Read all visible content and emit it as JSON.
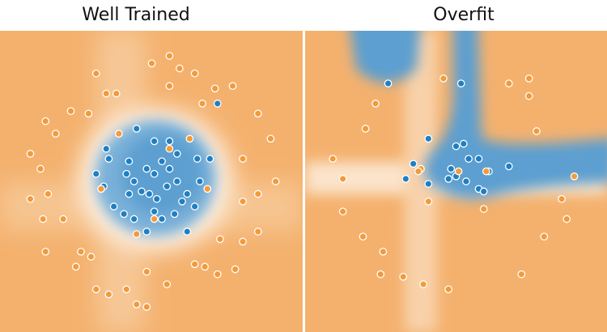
{
  "chart_data": [
    {
      "type": "scatter",
      "title": "Well Trained",
      "xlim": [
        -6,
        6
      ],
      "ylim": [
        -6,
        6
      ],
      "series": [
        {
          "color": "#1f7fc4",
          "x": [
            -0.6,
            -1.8,
            -1.7,
            -2.2,
            -1.9,
            -1.5,
            -1.1,
            -0.7,
            -0.2,
            0.1,
            0.4,
            0.9,
            1.4,
            1.7,
            1.9,
            2.3,
            1.8,
            1.0,
            0.7,
            0.1,
            -0.9,
            -1.0,
            -0.7,
            -0.4,
            -0.1,
            0.2,
            0.6,
            0.7,
            1.0,
            1.4,
            -0.2,
            0.1,
            0.4,
            -0.9,
            2.6,
            1.2
          ],
          "values": [
            2.1,
            1.3,
            0.9,
            0.3,
            -0.2,
            -1.0,
            -1.3,
            -1.5,
            -2.0,
            -1.2,
            -1.5,
            -1.3,
            -2.0,
            -1.0,
            0.0,
            0.9,
            0.9,
            1.1,
            1.6,
            1.6,
            0.8,
            0.3,
            0.0,
            -0.4,
            -0.5,
            -0.7,
            -0.2,
            0.5,
            0.0,
            -0.5,
            0.5,
            0.3,
            0.8,
            -0.5,
            3.1,
            -0.8
          ]
        },
        {
          "color": "#f59a3a",
          "x": [
            -2.2,
            0.0,
            0.7,
            1.1,
            1.7,
            2.5,
            3.2,
            2.0,
            -1.8,
            -1.4,
            -2.5,
            -3.2,
            -4.2,
            -3.8,
            -4.8,
            -4.4,
            -4.8,
            -4.1,
            -4.3,
            -3.5,
            -4.2,
            -2.8,
            -2.4,
            -3.0,
            -2.2,
            -1.7,
            -1.0,
            -0.6,
            -0.2,
            0.6,
            -0.2,
            1.7,
            2.1,
            2.6,
            3.3,
            3.6,
            4.2,
            3.6,
            4.2,
            4.9,
            3.6,
            4.2,
            4.7,
            -1.3,
            0.7,
            1.5,
            2.2,
            0.1,
            -0.6,
            -2.0,
            2.7,
            0.7
          ],
          "values": [
            4.3,
            4.7,
            5.0,
            4.5,
            4.3,
            3.7,
            3.8,
            3.1,
            3.5,
            3.5,
            2.7,
            2.8,
            2.4,
            1.9,
            1.1,
            0.5,
            -0.7,
            -0.5,
            -1.5,
            -1.5,
            -2.8,
            -2.8,
            -3.0,
            -3.4,
            -4.3,
            -4.5,
            -4.3,
            -4.9,
            -5.0,
            -4.1,
            -3.6,
            -3.3,
            -3.4,
            -3.7,
            -3.5,
            -2.4,
            -2.0,
            -0.8,
            -0.5,
            0.0,
            0.9,
            2.7,
            1.7,
            1.9,
            1.3,
            1.7,
            -0.3,
            -1.5,
            -2.1,
            -0.3,
            -2.3,
            3.8
          ]
        }
      ]
    },
    {
      "type": "scatter",
      "title": "Overfit",
      "xlim": [
        -6,
        6
      ],
      "ylim": [
        -6,
        6
      ],
      "series": [
        {
          "color": "#1f7fc4",
          "x": [
            -2.7,
            0.2,
            -1.1,
            0.0,
            0.3,
            0.5,
            0.9,
            -1.7,
            -2.0,
            -1.1,
            -0.2,
            0.0,
            0.4,
            0.9,
            1.1,
            1.3,
            2.1,
            -0.3
          ],
          "values": [
            3.9,
            3.9,
            1.7,
            1.4,
            1.5,
            0.9,
            0.9,
            0.7,
            0.1,
            -0.1,
            0.5,
            0.2,
            0.0,
            -0.3,
            -0.4,
            0.4,
            0.6,
            0.1
          ]
        },
        {
          "color": "#f59a3a",
          "x": [
            -0.5,
            -3.2,
            -3.6,
            -4.9,
            -4.5,
            -4.5,
            -3.7,
            -2.9,
            -3.0,
            -2.1,
            -1.3,
            -0.3,
            -1.1,
            1.1,
            2.1,
            2.9,
            2.9,
            3.2,
            4.7,
            4.2,
            4.4,
            3.5,
            2.6,
            -1.4,
            -1.5,
            0.1,
            1.2
          ],
          "values": [
            4.1,
            3.1,
            2.1,
            0.9,
            0.1,
            -1.2,
            -2.2,
            -2.8,
            -3.7,
            -3.8,
            -4.1,
            -4.3,
            -0.8,
            -1.1,
            3.9,
            4.1,
            3.4,
            2.0,
            0.2,
            -0.7,
            -1.5,
            -2.2,
            -3.7,
            0.5,
            0.4,
            0.4,
            0.4
          ]
        }
      ]
    }
  ]
}
